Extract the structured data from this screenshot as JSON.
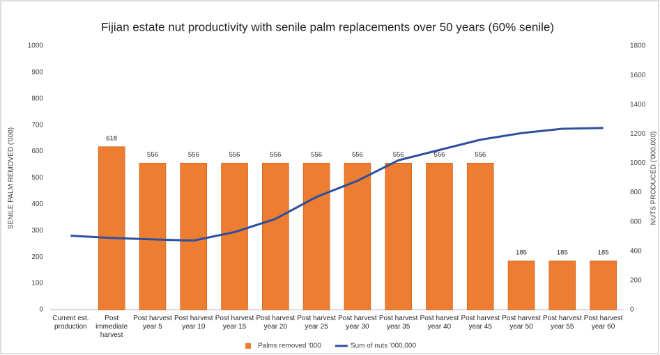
{
  "chart_data": {
    "type": "bar_line",
    "title": "Fijian estate nut productivity with senile palm replacements over 50 years (60% senile)",
    "y_label": "SENILE PALM REMOVED ('000)",
    "y2_label": "NUTS PRODUCED ('000,000)",
    "categories": [
      "Current est. production",
      "Post immediate harvest",
      "Post harvest year 5",
      "Post harvest year 10",
      "Post harvest year 15",
      "Post harvest year 20",
      "Post harvest year 25",
      "Post harvest year 30",
      "Post harvest year 35",
      "Post harvest year 40",
      "Post harvest year 45",
      "Post harvest year 50",
      "Post harvest year 55",
      "Post harvest year 60"
    ],
    "series": [
      {
        "name": "Palms removed '000",
        "type": "bar",
        "color": "#ed7d31",
        "axis": "y",
        "values": [
          null,
          618,
          556,
          556,
          556,
          556,
          556,
          556,
          556,
          556,
          556,
          185,
          185,
          185
        ]
      },
      {
        "name": "Sum of nuts '000,000",
        "type": "line",
        "color": "#2e4f9e",
        "axis": "y2",
        "values": [
          505,
          490,
          480,
          472,
          530,
          620,
          770,
          880,
          1020,
          1090,
          1160,
          1205,
          1235,
          1240
        ]
      }
    ],
    "ylim": [
      0,
      1000
    ],
    "yticks": [
      0,
      100,
      200,
      300,
      400,
      500,
      600,
      700,
      800,
      900,
      1000
    ],
    "y2lim": [
      0,
      1800
    ],
    "y2ticks": [
      0,
      200,
      400,
      600,
      800,
      1000,
      1200,
      1400,
      1600,
      1800
    ],
    "legend": "bottom",
    "grid": false
  }
}
